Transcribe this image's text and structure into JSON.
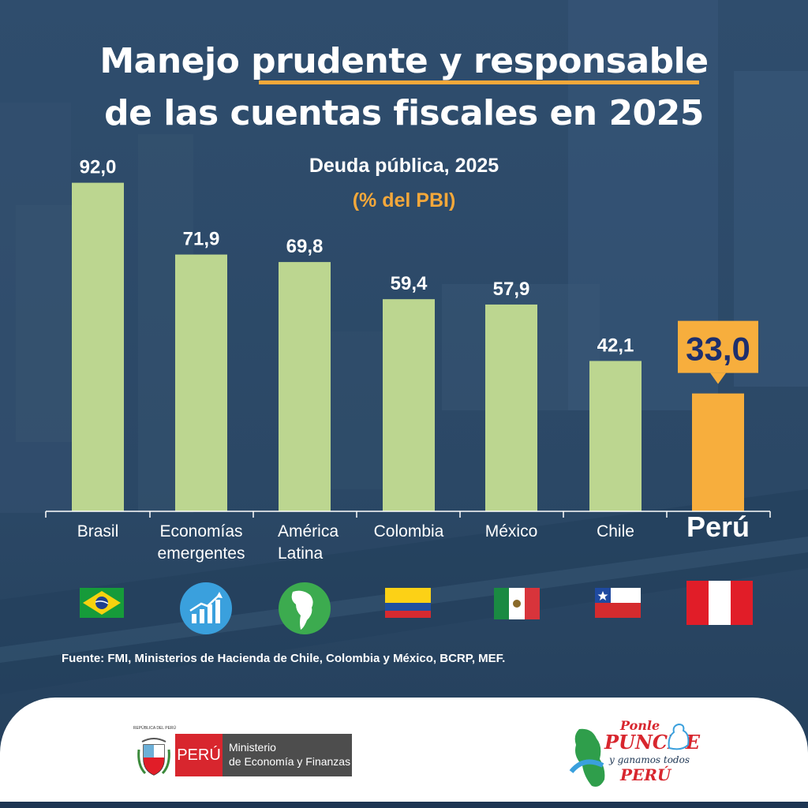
{
  "title_line1": "Manejo prudente y responsable",
  "title_line2": "de las cuentas fiscales en 2025",
  "subtitle": "Deuda pública, 2025",
  "unit": "(% del PBI)",
  "source": "Fuente: FMI, Ministerios de Hacienda de Chile, Colombia y México, BCRP, MEF.",
  "colors": {
    "bar": "#bcd690",
    "highlight": "#f7ae3d",
    "background": "#2b4866",
    "accent": "#f5a83a"
  },
  "chart_data": {
    "type": "bar",
    "title": "Deuda pública, 2025",
    "ylabel": "(% del PBI)",
    "categories": [
      "Brasil",
      "Economías emergentes",
      "América Latina",
      "Colombia",
      "México",
      "Chile",
      "Perú"
    ],
    "values": [
      92.0,
      71.9,
      69.8,
      59.4,
      57.9,
      42.1,
      33.0
    ],
    "value_labels": [
      "92,0",
      "71,9",
      "69,8",
      "59,4",
      "57,9",
      "42,1",
      "33,0"
    ],
    "highlight": "Perú",
    "ylim": [
      0,
      100
    ],
    "grid": false
  },
  "category_lines": [
    [
      "Brasil"
    ],
    [
      "Economías",
      "emergentes"
    ],
    [
      "América",
      "Latina"
    ],
    [
      "Colombia"
    ],
    [
      "México"
    ],
    [
      "Chile"
    ],
    [
      "Perú"
    ]
  ],
  "icons": [
    "brazil-flag-icon",
    "growth-chart-icon",
    "latin-america-globe-icon",
    "colombia-flag-icon",
    "mexico-flag-icon",
    "chile-flag-icon",
    "peru-flag-icon"
  ],
  "footer": {
    "peru_tag": "PERÚ",
    "ministry_line1": "Ministerio",
    "ministry_line2": "de Economía y Finanzas",
    "seal_text": "REPÚBLICA DEL PERÚ",
    "campaign_line1": "Ponle",
    "campaign_line2": "PUNCHE",
    "campaign_line3": "y ganamos todos",
    "campaign_line4": "PERÚ"
  }
}
